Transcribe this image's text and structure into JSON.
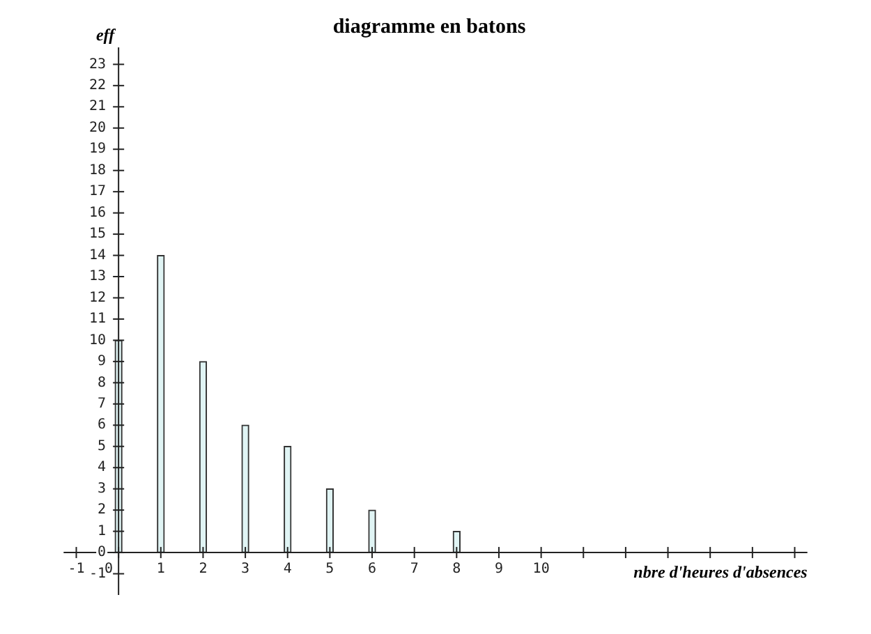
{
  "chart_data": {
    "type": "bar",
    "title": "diagramme en batons",
    "xlabel": "nbre d'heures d'absences",
    "ylabel": "eff",
    "x": [
      0,
      1,
      2,
      3,
      4,
      5,
      6,
      8
    ],
    "series": [
      {
        "color": "#e0f4f4",
        "values": [
          10,
          14,
          9,
          6,
          5,
          3,
          2,
          1
        ]
      }
    ],
    "xlim": [
      -1.3,
      16.3
    ],
    "xticks": [
      -1,
      0,
      1,
      2,
      3,
      4,
      5,
      6,
      7,
      8,
      9,
      10,
      {
        "value": 11,
        "label": null
      },
      {
        "value": 12,
        "label": null
      },
      {
        "value": 13,
        "label": null
      },
      {
        "value": 14,
        "label": null
      },
      {
        "value": 15,
        "label": null
      },
      {
        "value": 16,
        "label": null
      }
    ],
    "ylim": [
      -2,
      23.8
    ],
    "yticks": [
      -1,
      0,
      1,
      2,
      3,
      4,
      5,
      6,
      7,
      8,
      9,
      10,
      11,
      12,
      13,
      14,
      15,
      16,
      17,
      18,
      19,
      20,
      21,
      22,
      23
    ],
    "grid": false,
    "legend": false
  }
}
